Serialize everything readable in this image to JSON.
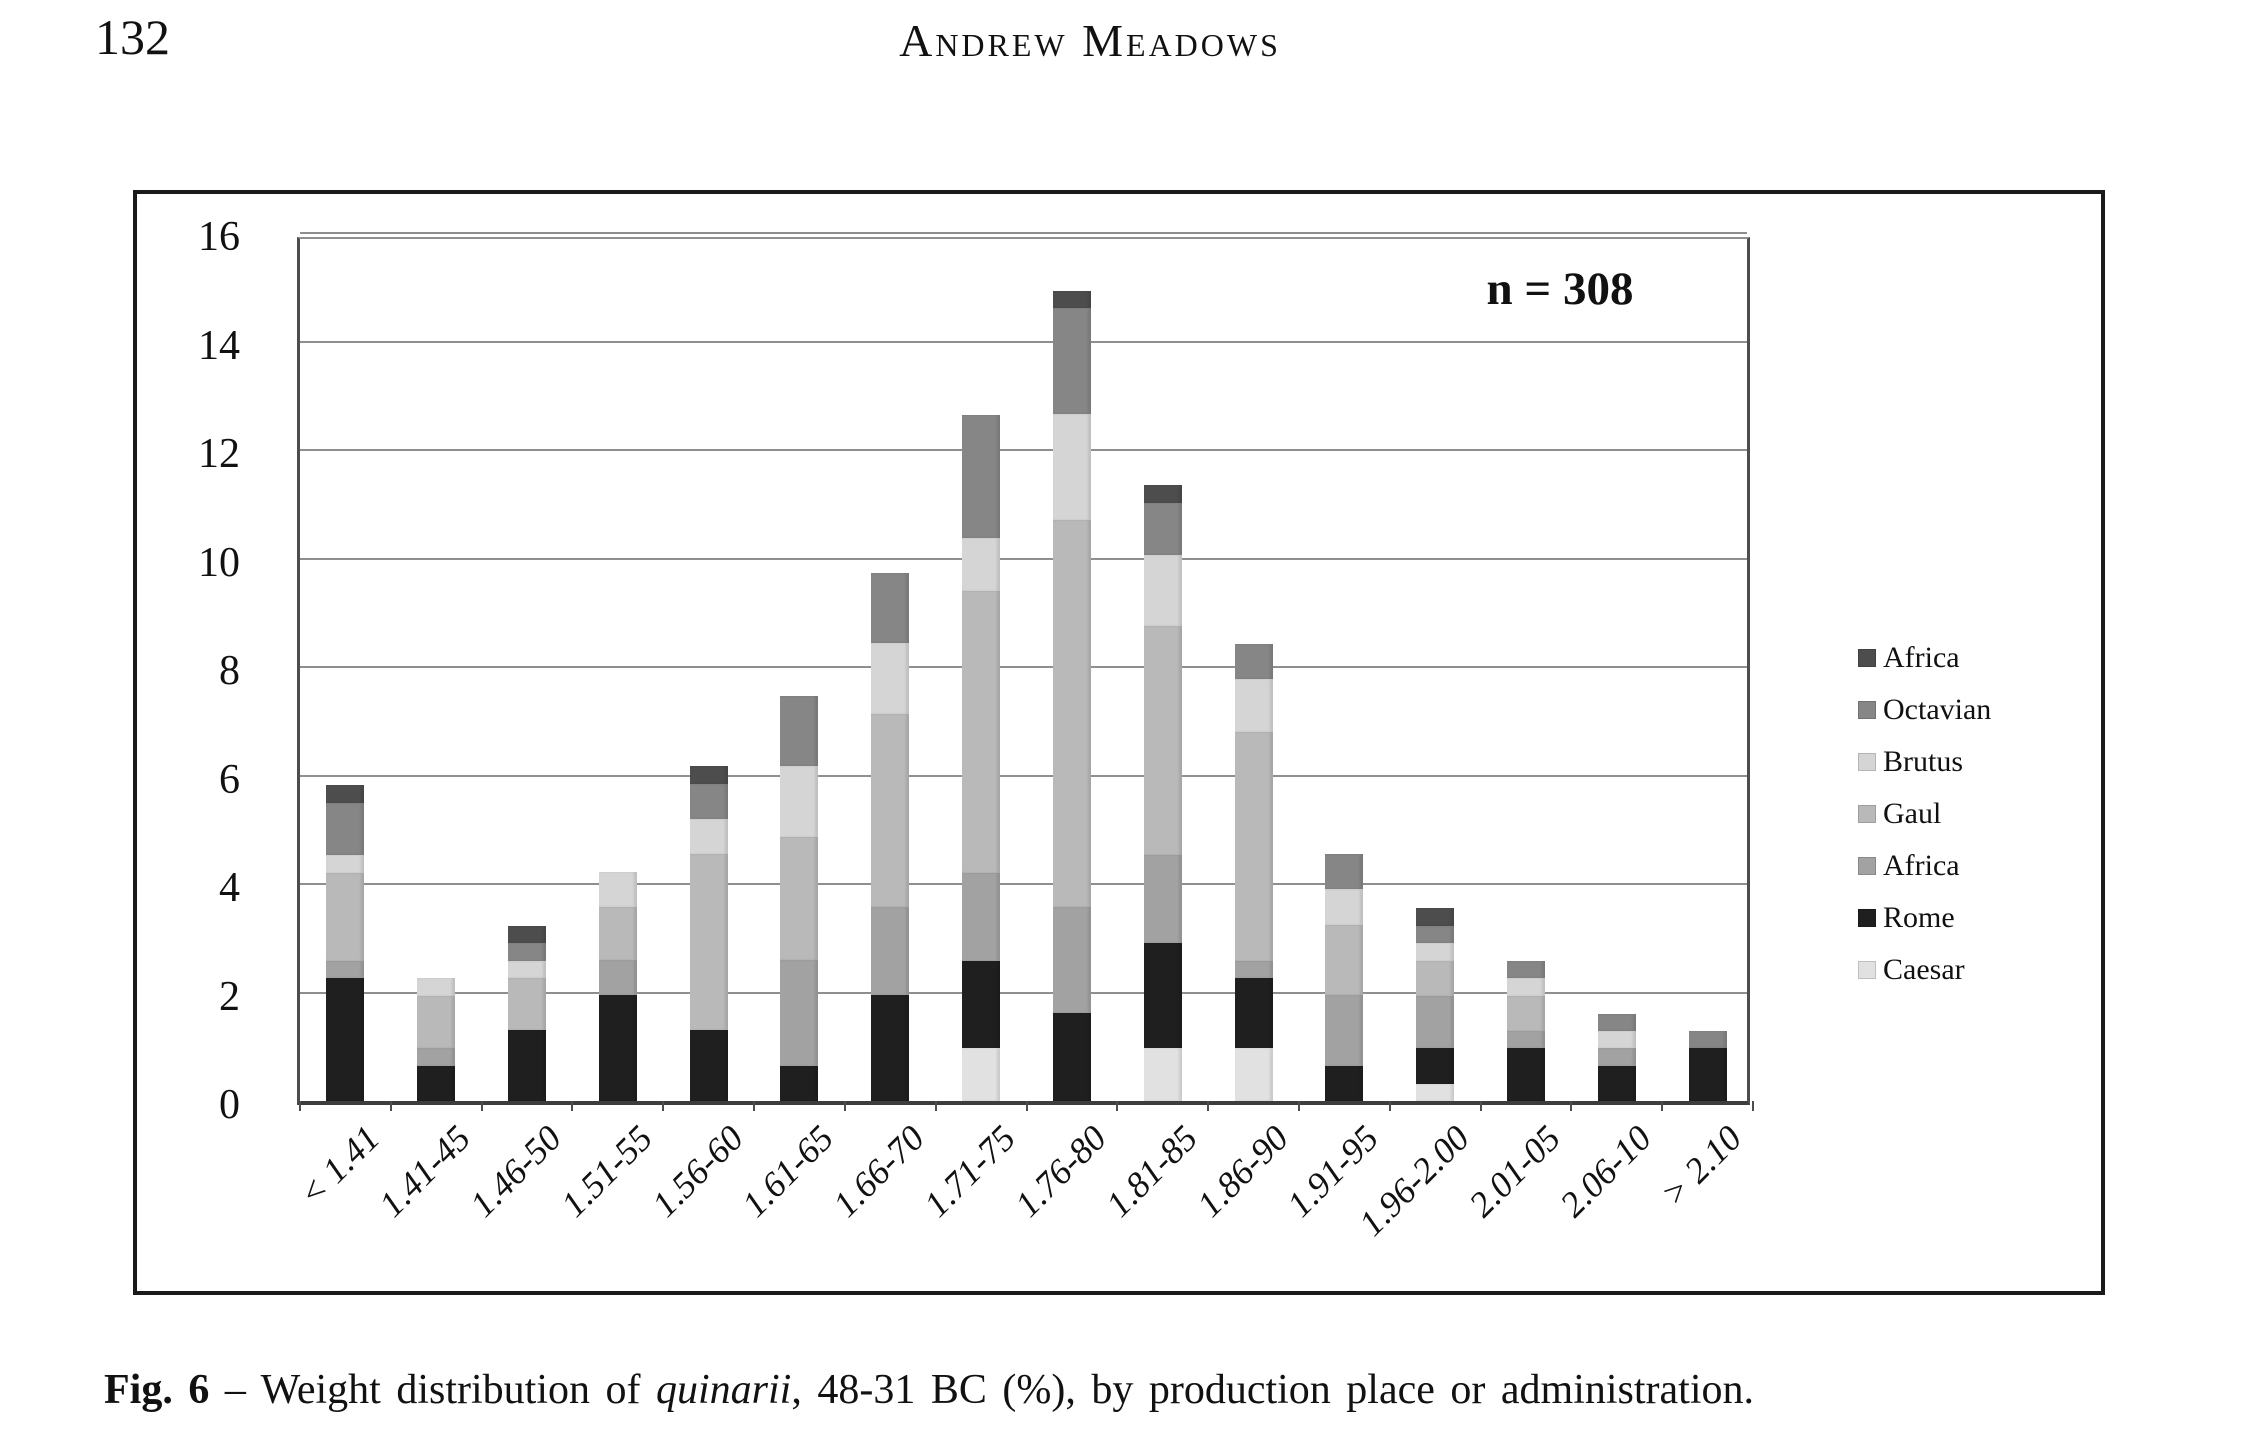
{
  "page": {
    "number": "132",
    "running_head": "Andrew Meadows"
  },
  "figure": {
    "annotation": "n = 308",
    "caption": {
      "label": "Fig. 6",
      "separator": " – ",
      "before_italic": "Weight distribution of ",
      "italic_term": "quinarii",
      "after_italic": ", 48-31 BC (%), by production place or administration."
    }
  },
  "chart_data": {
    "type": "bar",
    "stacked": true,
    "title": "",
    "xlabel": "",
    "ylabel": "",
    "annotation": "n = 308",
    "n_total": 308,
    "ylim": [
      0,
      16
    ],
    "yticks": [
      0,
      2,
      4,
      6,
      8,
      10,
      12,
      14,
      16
    ],
    "grid": true,
    "legend_position": "right",
    "categories": [
      "< 1.41",
      "1.41-45",
      "1.46-50",
      "1.51-55",
      "1.56-60",
      "1.61-65",
      "1.66-70",
      "1.71-75",
      "1.76-80",
      "1.81-85",
      "1.86-90",
      "1.91-95",
      "1.96-2.00",
      "2.01-05",
      "2.06-10",
      "> 2.10"
    ],
    "series_note": "stack order bottom-to-top; values are percent of 308 coins (1 coin = 0.32%)",
    "series": [
      {
        "name": "Caesar",
        "color": "#e1e1e1",
        "values": [
          0,
          0,
          0,
          0,
          0,
          0,
          0,
          0.97,
          0,
          0.97,
          0.97,
          0,
          0.32,
          0,
          0,
          0
        ]
      },
      {
        "name": "Rome",
        "color": "#1f1f1f",
        "values": [
          2.27,
          0.65,
          1.3,
          1.95,
          1.3,
          0.65,
          1.95,
          1.62,
          1.62,
          1.95,
          1.3,
          0.65,
          0.65,
          0.97,
          0.65,
          0.97
        ]
      },
      {
        "name": "Africa",
        "color": "#a2a2a2",
        "values": [
          0.32,
          0.32,
          0,
          0.65,
          0,
          1.95,
          1.62,
          1.62,
          1.95,
          1.62,
          0.32,
          1.3,
          0.97,
          0.32,
          0.32,
          0
        ]
      },
      {
        "name": "Gaul",
        "color": "#b9b9b9",
        "values": [
          1.62,
          0.97,
          0.97,
          0.97,
          3.25,
          2.27,
          3.57,
          5.19,
          7.14,
          4.22,
          4.22,
          1.3,
          0.65,
          0.65,
          0,
          0
        ]
      },
      {
        "name": "Brutus",
        "color": "#d5d5d5",
        "values": [
          0.32,
          0.32,
          0.32,
          0.65,
          0.65,
          1.3,
          1.3,
          0.97,
          1.95,
          1.3,
          0.97,
          0.65,
          0.32,
          0.32,
          0.32,
          0
        ]
      },
      {
        "name": "Octavian",
        "color": "#868686",
        "values": [
          0.97,
          0,
          0.32,
          0,
          0.65,
          1.3,
          1.3,
          2.27,
          1.95,
          0.97,
          0.65,
          0.65,
          0.32,
          0.32,
          0.32,
          0.32
        ]
      },
      {
        "name": "Africa",
        "color": "#4d4d4d",
        "values": [
          0.32,
          0,
          0.32,
          0,
          0.32,
          0,
          0,
          0,
          0.32,
          0.32,
          0,
          0,
          0.32,
          0,
          0,
          0
        ]
      }
    ],
    "legend_top_to_bottom": [
      {
        "label": "Africa",
        "color": "#4d4d4d"
      },
      {
        "label": "Octavian",
        "color": "#868686"
      },
      {
        "label": "Brutus",
        "color": "#d5d5d5"
      },
      {
        "label": "Gaul",
        "color": "#b9b9b9"
      },
      {
        "label": "Africa",
        "color": "#a2a2a2"
      },
      {
        "label": "Rome",
        "color": "#1f1f1f"
      },
      {
        "label": "Caesar",
        "color": "#e1e1e1"
      }
    ]
  }
}
